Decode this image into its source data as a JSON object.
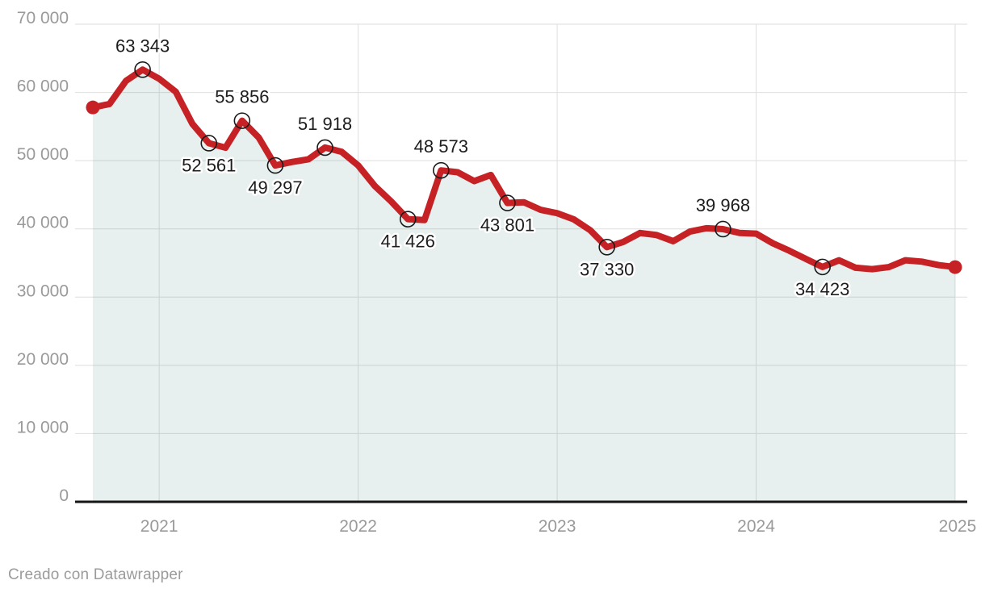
{
  "footer": {
    "credit": "Creado con Datawrapper"
  },
  "chart_data": {
    "type": "area",
    "title": "",
    "x_axis": {
      "tick_labels": [
        "2021",
        "2022",
        "2023",
        "2024",
        "2025"
      ],
      "start_month": "2020-09",
      "end_month": "2025-01",
      "cadence": "monthly"
    },
    "y_axis": {
      "tick_labels": [
        "0",
        "10 000",
        "20 000",
        "30 000",
        "40 000",
        "50 000",
        "60 000",
        "70 000"
      ],
      "ylim": [
        0,
        70000
      ],
      "tick_step": 10000
    },
    "grid": true,
    "legend": "none",
    "series": [
      {
        "name": "value",
        "monthly_values": [
          57800,
          58300,
          61700,
          63343,
          62000,
          60100,
          55400,
          52561,
          51900,
          55856,
          53400,
          49297,
          49800,
          50200,
          51918,
          51300,
          49300,
          46300,
          44000,
          41426,
          41300,
          48573,
          48300,
          47000,
          47900,
          43801,
          43900,
          42800,
          42300,
          41400,
          39800,
          37330,
          38100,
          39400,
          39100,
          38200,
          39600,
          40100,
          39968,
          39400,
          39300,
          37900,
          36800,
          35600,
          34423,
          35400,
          34300,
          34100,
          34400,
          35400,
          35200,
          34700,
          34400
        ]
      }
    ],
    "labeled_points": [
      {
        "index": 3,
        "label": "63 343",
        "position": "above"
      },
      {
        "index": 7,
        "label": "52 561",
        "position": "below"
      },
      {
        "index": 9,
        "label": "55 856",
        "position": "above"
      },
      {
        "index": 11,
        "label": "49 297",
        "position": "below"
      },
      {
        "index": 14,
        "label": "51 918",
        "position": "above"
      },
      {
        "index": 19,
        "label": "41 426",
        "position": "below"
      },
      {
        "index": 21,
        "label": "48 573",
        "position": "above"
      },
      {
        "index": 25,
        "label": "43 801",
        "position": "below"
      },
      {
        "index": 31,
        "label": "37 330",
        "position": "below"
      },
      {
        "index": 38,
        "label": "39 968",
        "position": "above"
      },
      {
        "index": 44,
        "label": "34 423",
        "position": "below"
      }
    ],
    "year_tick_indices": [
      4,
      16,
      28,
      40,
      52
    ],
    "endpoint_dots": [
      0,
      52
    ],
    "colors": {
      "line": "#c62226",
      "area": "rgba(72,138,122,0.13)",
      "grid": "#dedede",
      "axis": "#161616",
      "tick_text": "#9a9a9a",
      "label_text": "#1d1d1d",
      "marker_ring": "#1a1a1a",
      "label_halo": "#ffffff"
    }
  }
}
